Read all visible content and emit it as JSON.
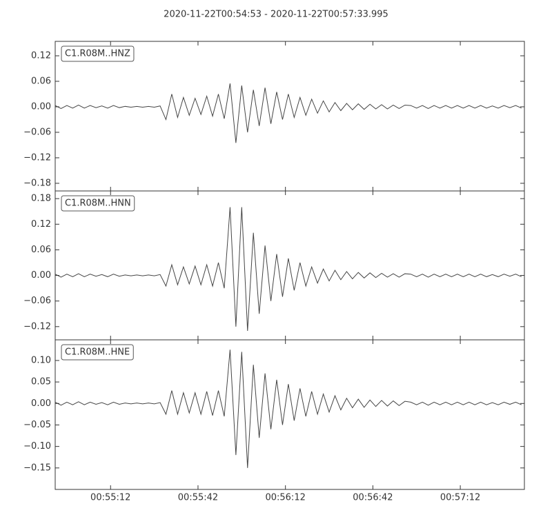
{
  "title": "2020-11-22T00:54:53  -  2020-11-22T00:57:33.995",
  "chart_data": [
    {
      "type": "line",
      "x": [
        0,
        2,
        4,
        6,
        8,
        10,
        12,
        14,
        16,
        18,
        20,
        22,
        24,
        26,
        28,
        30,
        32,
        34,
        36,
        38,
        40,
        42,
        44,
        46,
        48,
        50,
        52,
        54,
        56,
        58,
        60,
        62,
        64,
        66,
        68,
        70,
        72,
        74,
        76,
        78,
        80,
        82,
        84,
        86,
        88,
        90,
        92,
        94,
        96,
        98,
        100,
        102,
        104,
        106,
        108,
        110,
        112,
        114,
        116,
        118,
        120,
        122,
        124,
        126,
        128,
        130,
        132,
        134,
        136,
        138,
        140,
        142,
        144,
        146,
        148,
        150,
        152,
        154,
        156,
        158,
        160
      ],
      "series": [
        {
          "name": "C1.R08M..HNZ",
          "color": "#444444",
          "values": [
            0.003,
            -0.004,
            0.003,
            -0.003,
            0.004,
            -0.003,
            0.003,
            -0.002,
            0.002,
            -0.003,
            0.003,
            -0.002,
            0.001,
            -0.001,
            0.001,
            -0.001,
            0.001,
            -0.001,
            0.002,
            -0.03,
            0.03,
            -0.025,
            0.022,
            -0.02,
            0.02,
            -0.018,
            0.025,
            -0.022,
            0.03,
            -0.028,
            0.055,
            -0.085,
            0.05,
            -0.06,
            0.04,
            -0.045,
            0.045,
            -0.04,
            0.035,
            -0.03,
            0.03,
            -0.025,
            0.022,
            -0.02,
            0.018,
            -0.015,
            0.014,
            -0.012,
            0.01,
            -0.009,
            0.008,
            -0.007,
            0.007,
            -0.006,
            0.006,
            -0.005,
            0.005,
            -0.005,
            0.004,
            -0.004,
            0.004,
            0.003,
            -0.003,
            0.003,
            -0.004,
            0.003,
            -0.003,
            0.003,
            -0.003,
            0.003,
            -0.003,
            0.003,
            -0.003,
            0.003,
            -0.003,
            0.002,
            -0.003,
            0.003,
            -0.002,
            0.003,
            -0.003
          ]
        }
      ],
      "xlim": [
        0,
        160.995
      ],
      "ylim": [
        -0.198,
        0.154
      ],
      "yticks": [
        0.12,
        0.06,
        {
          "value": 0,
          "label": "0.00"
        },
        {
          "value": -0.06,
          "label": "−0.06"
        },
        {
          "value": -0.12,
          "label": "−0.12"
        },
        {
          "value": -0.18,
          "label": "−0.18"
        }
      ]
    },
    {
      "type": "line",
      "x": [
        0,
        2,
        4,
        6,
        8,
        10,
        12,
        14,
        16,
        18,
        20,
        22,
        24,
        26,
        28,
        30,
        32,
        34,
        36,
        38,
        40,
        42,
        44,
        46,
        48,
        50,
        52,
        54,
        56,
        58,
        60,
        62,
        64,
        66,
        68,
        70,
        72,
        74,
        76,
        78,
        80,
        82,
        84,
        86,
        88,
        90,
        92,
        94,
        96,
        98,
        100,
        102,
        104,
        106,
        108,
        110,
        112,
        114,
        116,
        118,
        120,
        122,
        124,
        126,
        128,
        130,
        132,
        134,
        136,
        138,
        140,
        142,
        144,
        146,
        148,
        150,
        152,
        154,
        156,
        158,
        160
      ],
      "series": [
        {
          "name": "C1.R08M..HNN",
          "color": "#444444",
          "values": [
            0.003,
            -0.004,
            0.003,
            -0.003,
            0.004,
            -0.003,
            0.003,
            -0.002,
            0.002,
            -0.003,
            0.003,
            -0.002,
            0.001,
            -0.001,
            0.001,
            -0.001,
            0.001,
            -0.001,
            0.002,
            -0.025,
            0.025,
            -0.022,
            0.02,
            -0.02,
            0.022,
            -0.022,
            0.025,
            -0.025,
            0.03,
            -0.03,
            0.16,
            -0.12,
            0.16,
            -0.13,
            0.1,
            -0.09,
            0.07,
            -0.06,
            0.05,
            -0.05,
            0.04,
            -0.035,
            0.03,
            -0.025,
            0.02,
            -0.018,
            0.015,
            -0.013,
            0.012,
            -0.01,
            0.009,
            -0.008,
            0.007,
            -0.006,
            0.006,
            -0.005,
            0.005,
            -0.004,
            0.004,
            -0.004,
            0.004,
            0.003,
            -0.003,
            0.003,
            -0.004,
            0.003,
            -0.003,
            0.003,
            -0.003,
            0.003,
            -0.003,
            0.003,
            -0.003,
            0.003,
            -0.003,
            0.002,
            -0.003,
            0.003,
            -0.002,
            0.003,
            -0.003
          ]
        }
      ],
      "xlim": [
        0,
        160.995
      ],
      "ylim": [
        -0.151,
        0.198
      ],
      "yticks": [
        0.18,
        0.12,
        0.06,
        {
          "value": 0,
          "label": "0.00"
        },
        {
          "value": -0.06,
          "label": "−0.06"
        },
        {
          "value": -0.12,
          "label": "−0.12"
        }
      ]
    },
    {
      "type": "line",
      "x": [
        0,
        2,
        4,
        6,
        8,
        10,
        12,
        14,
        16,
        18,
        20,
        22,
        24,
        26,
        28,
        30,
        32,
        34,
        36,
        38,
        40,
        42,
        44,
        46,
        48,
        50,
        52,
        54,
        56,
        58,
        60,
        62,
        64,
        66,
        68,
        70,
        72,
        74,
        76,
        78,
        80,
        82,
        84,
        86,
        88,
        90,
        92,
        94,
        96,
        98,
        100,
        102,
        104,
        106,
        108,
        110,
        112,
        114,
        116,
        118,
        120,
        122,
        124,
        126,
        128,
        130,
        132,
        134,
        136,
        138,
        140,
        142,
        144,
        146,
        148,
        150,
        152,
        154,
        156,
        158,
        160
      ],
      "series": [
        {
          "name": "C1.R08M..HNE",
          "color": "#444444",
          "values": [
            0.003,
            -0.004,
            0.003,
            -0.003,
            0.004,
            -0.003,
            0.003,
            -0.002,
            0.002,
            -0.003,
            0.003,
            -0.002,
            0.001,
            -0.001,
            0.001,
            -0.001,
            0.001,
            -0.001,
            0.002,
            -0.025,
            0.03,
            -0.025,
            0.025,
            -0.022,
            0.025,
            -0.025,
            0.028,
            -0.028,
            0.03,
            -0.03,
            0.125,
            -0.12,
            0.12,
            -0.15,
            0.09,
            -0.08,
            0.07,
            -0.06,
            0.055,
            -0.05,
            0.045,
            -0.04,
            0.035,
            -0.03,
            0.028,
            -0.025,
            0.022,
            -0.02,
            0.018,
            -0.015,
            0.012,
            -0.01,
            0.01,
            -0.009,
            0.008,
            -0.007,
            0.007,
            -0.006,
            0.006,
            -0.005,
            0.005,
            0.003,
            -0.003,
            0.003,
            -0.004,
            0.003,
            -0.003,
            0.003,
            -0.003,
            0.003,
            -0.003,
            0.003,
            -0.003,
            0.003,
            -0.003,
            0.002,
            -0.003,
            0.003,
            -0.002,
            0.003,
            -0.003
          ]
        }
      ],
      "xlim": [
        0,
        160.995
      ],
      "ylim": [
        -0.2,
        0.148
      ],
      "yticks": [
        {
          "value": 0.1,
          "label": "0.10"
        },
        0.05,
        {
          "value": 0,
          "label": "0.00"
        },
        {
          "value": -0.05,
          "label": "−0.05"
        },
        {
          "value": -0.1,
          "label": "−0.10"
        },
        {
          "value": -0.15,
          "label": "−0.15"
        }
      ],
      "xticks": [
        {
          "value": 19,
          "label": "00:55:12"
        },
        {
          "value": 49,
          "label": "00:55:42"
        },
        {
          "value": 79,
          "label": "00:56:12"
        },
        {
          "value": 109,
          "label": "00:56:42"
        },
        {
          "value": 139,
          "label": "00:57:12"
        }
      ]
    }
  ]
}
